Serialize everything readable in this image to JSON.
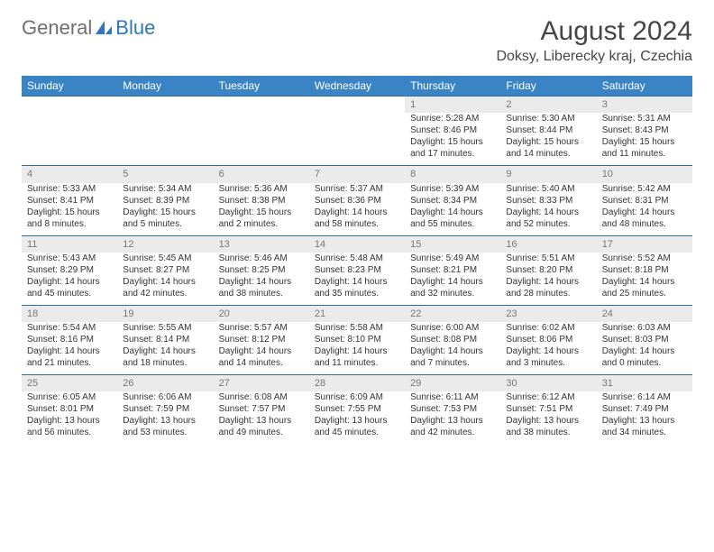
{
  "logo": {
    "general": "General",
    "blue": "Blue"
  },
  "header": {
    "month_title": "August 2024",
    "location": "Doksy, Liberecky kraj, Czechia"
  },
  "weekdays": [
    "Sunday",
    "Monday",
    "Tuesday",
    "Wednesday",
    "Thursday",
    "Friday",
    "Saturday"
  ],
  "colors": {
    "header_bg": "#3a84c6",
    "header_text": "#ffffff",
    "daynum_bg": "#ebebeb",
    "daynum_text": "#777777",
    "row_border": "#2f6fa8"
  },
  "weeks": [
    [
      null,
      null,
      null,
      null,
      {
        "n": "1",
        "sunrise": "Sunrise: 5:28 AM",
        "sunset": "Sunset: 8:46 PM",
        "day1": "Daylight: 15 hours",
        "day2": "and 17 minutes."
      },
      {
        "n": "2",
        "sunrise": "Sunrise: 5:30 AM",
        "sunset": "Sunset: 8:44 PM",
        "day1": "Daylight: 15 hours",
        "day2": "and 14 minutes."
      },
      {
        "n": "3",
        "sunrise": "Sunrise: 5:31 AM",
        "sunset": "Sunset: 8:43 PM",
        "day1": "Daylight: 15 hours",
        "day2": "and 11 minutes."
      }
    ],
    [
      {
        "n": "4",
        "sunrise": "Sunrise: 5:33 AM",
        "sunset": "Sunset: 8:41 PM",
        "day1": "Daylight: 15 hours",
        "day2": "and 8 minutes."
      },
      {
        "n": "5",
        "sunrise": "Sunrise: 5:34 AM",
        "sunset": "Sunset: 8:39 PM",
        "day1": "Daylight: 15 hours",
        "day2": "and 5 minutes."
      },
      {
        "n": "6",
        "sunrise": "Sunrise: 5:36 AM",
        "sunset": "Sunset: 8:38 PM",
        "day1": "Daylight: 15 hours",
        "day2": "and 2 minutes."
      },
      {
        "n": "7",
        "sunrise": "Sunrise: 5:37 AM",
        "sunset": "Sunset: 8:36 PM",
        "day1": "Daylight: 14 hours",
        "day2": "and 58 minutes."
      },
      {
        "n": "8",
        "sunrise": "Sunrise: 5:39 AM",
        "sunset": "Sunset: 8:34 PM",
        "day1": "Daylight: 14 hours",
        "day2": "and 55 minutes."
      },
      {
        "n": "9",
        "sunrise": "Sunrise: 5:40 AM",
        "sunset": "Sunset: 8:33 PM",
        "day1": "Daylight: 14 hours",
        "day2": "and 52 minutes."
      },
      {
        "n": "10",
        "sunrise": "Sunrise: 5:42 AM",
        "sunset": "Sunset: 8:31 PM",
        "day1": "Daylight: 14 hours",
        "day2": "and 48 minutes."
      }
    ],
    [
      {
        "n": "11",
        "sunrise": "Sunrise: 5:43 AM",
        "sunset": "Sunset: 8:29 PM",
        "day1": "Daylight: 14 hours",
        "day2": "and 45 minutes."
      },
      {
        "n": "12",
        "sunrise": "Sunrise: 5:45 AM",
        "sunset": "Sunset: 8:27 PM",
        "day1": "Daylight: 14 hours",
        "day2": "and 42 minutes."
      },
      {
        "n": "13",
        "sunrise": "Sunrise: 5:46 AM",
        "sunset": "Sunset: 8:25 PM",
        "day1": "Daylight: 14 hours",
        "day2": "and 38 minutes."
      },
      {
        "n": "14",
        "sunrise": "Sunrise: 5:48 AM",
        "sunset": "Sunset: 8:23 PM",
        "day1": "Daylight: 14 hours",
        "day2": "and 35 minutes."
      },
      {
        "n": "15",
        "sunrise": "Sunrise: 5:49 AM",
        "sunset": "Sunset: 8:21 PM",
        "day1": "Daylight: 14 hours",
        "day2": "and 32 minutes."
      },
      {
        "n": "16",
        "sunrise": "Sunrise: 5:51 AM",
        "sunset": "Sunset: 8:20 PM",
        "day1": "Daylight: 14 hours",
        "day2": "and 28 minutes."
      },
      {
        "n": "17",
        "sunrise": "Sunrise: 5:52 AM",
        "sunset": "Sunset: 8:18 PM",
        "day1": "Daylight: 14 hours",
        "day2": "and 25 minutes."
      }
    ],
    [
      {
        "n": "18",
        "sunrise": "Sunrise: 5:54 AM",
        "sunset": "Sunset: 8:16 PM",
        "day1": "Daylight: 14 hours",
        "day2": "and 21 minutes."
      },
      {
        "n": "19",
        "sunrise": "Sunrise: 5:55 AM",
        "sunset": "Sunset: 8:14 PM",
        "day1": "Daylight: 14 hours",
        "day2": "and 18 minutes."
      },
      {
        "n": "20",
        "sunrise": "Sunrise: 5:57 AM",
        "sunset": "Sunset: 8:12 PM",
        "day1": "Daylight: 14 hours",
        "day2": "and 14 minutes."
      },
      {
        "n": "21",
        "sunrise": "Sunrise: 5:58 AM",
        "sunset": "Sunset: 8:10 PM",
        "day1": "Daylight: 14 hours",
        "day2": "and 11 minutes."
      },
      {
        "n": "22",
        "sunrise": "Sunrise: 6:00 AM",
        "sunset": "Sunset: 8:08 PM",
        "day1": "Daylight: 14 hours",
        "day2": "and 7 minutes."
      },
      {
        "n": "23",
        "sunrise": "Sunrise: 6:02 AM",
        "sunset": "Sunset: 8:06 PM",
        "day1": "Daylight: 14 hours",
        "day2": "and 3 minutes."
      },
      {
        "n": "24",
        "sunrise": "Sunrise: 6:03 AM",
        "sunset": "Sunset: 8:03 PM",
        "day1": "Daylight: 14 hours",
        "day2": "and 0 minutes."
      }
    ],
    [
      {
        "n": "25",
        "sunrise": "Sunrise: 6:05 AM",
        "sunset": "Sunset: 8:01 PM",
        "day1": "Daylight: 13 hours",
        "day2": "and 56 minutes."
      },
      {
        "n": "26",
        "sunrise": "Sunrise: 6:06 AM",
        "sunset": "Sunset: 7:59 PM",
        "day1": "Daylight: 13 hours",
        "day2": "and 53 minutes."
      },
      {
        "n": "27",
        "sunrise": "Sunrise: 6:08 AM",
        "sunset": "Sunset: 7:57 PM",
        "day1": "Daylight: 13 hours",
        "day2": "and 49 minutes."
      },
      {
        "n": "28",
        "sunrise": "Sunrise: 6:09 AM",
        "sunset": "Sunset: 7:55 PM",
        "day1": "Daylight: 13 hours",
        "day2": "and 45 minutes."
      },
      {
        "n": "29",
        "sunrise": "Sunrise: 6:11 AM",
        "sunset": "Sunset: 7:53 PM",
        "day1": "Daylight: 13 hours",
        "day2": "and 42 minutes."
      },
      {
        "n": "30",
        "sunrise": "Sunrise: 6:12 AM",
        "sunset": "Sunset: 7:51 PM",
        "day1": "Daylight: 13 hours",
        "day2": "and 38 minutes."
      },
      {
        "n": "31",
        "sunrise": "Sunrise: 6:14 AM",
        "sunset": "Sunset: 7:49 PM",
        "day1": "Daylight: 13 hours",
        "day2": "and 34 minutes."
      }
    ]
  ]
}
